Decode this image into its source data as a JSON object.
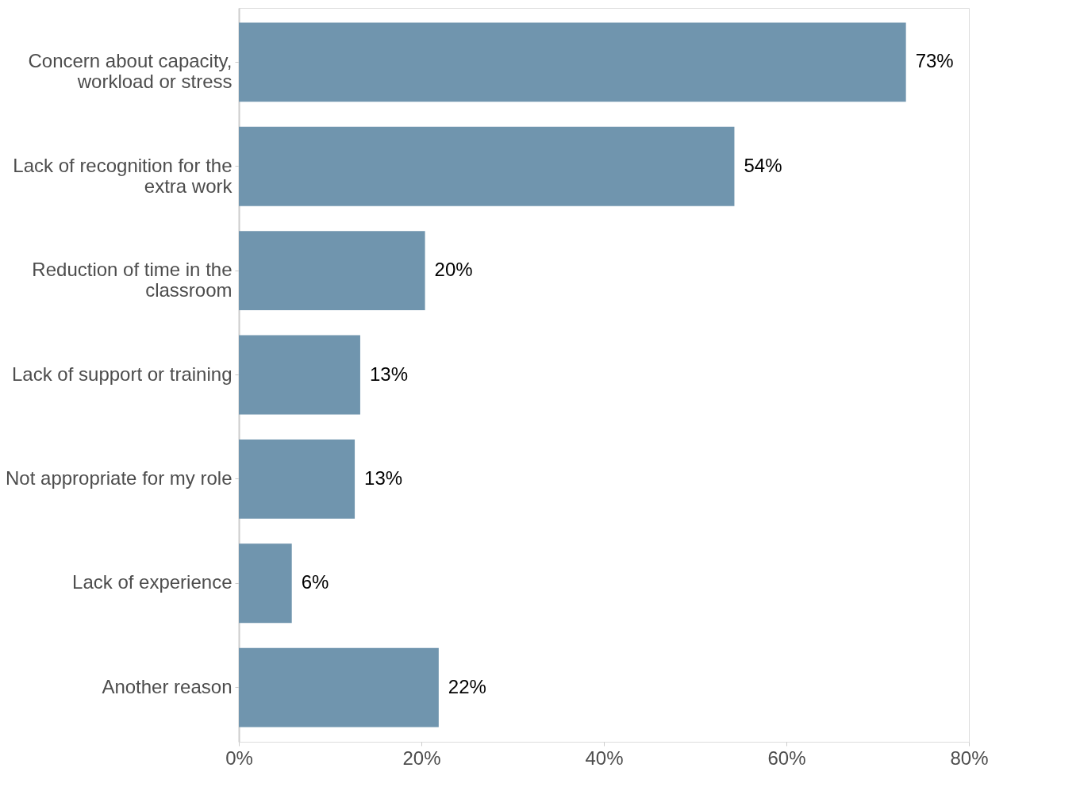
{
  "chart_data": {
    "type": "bar",
    "orientation": "horizontal",
    "categories": [
      "Concern about capacity,\nworkload or stress",
      "Lack of recognition for the\nextra work",
      "Reduction of time in the\nclassroom",
      "Lack of support or training",
      "Not appropriate for my role",
      "Lack of experience",
      "Another reason"
    ],
    "values": [
      73.1,
      54.3,
      20.4,
      13.3,
      12.7,
      5.8,
      21.9
    ],
    "value_labels": [
      "73%",
      "54%",
      "20%",
      "13%",
      "13%",
      "6%",
      "22%"
    ],
    "color": "#7095ae",
    "xlim": [
      0,
      80
    ],
    "xticks": [
      {
        "value": 0,
        "label": "0%"
      },
      {
        "value": 20,
        "label": "20%"
      },
      {
        "value": 40,
        "label": "40%"
      },
      {
        "value": 60,
        "label": "60%"
      },
      {
        "value": 80,
        "label": "80%"
      }
    ],
    "grid": false
  }
}
